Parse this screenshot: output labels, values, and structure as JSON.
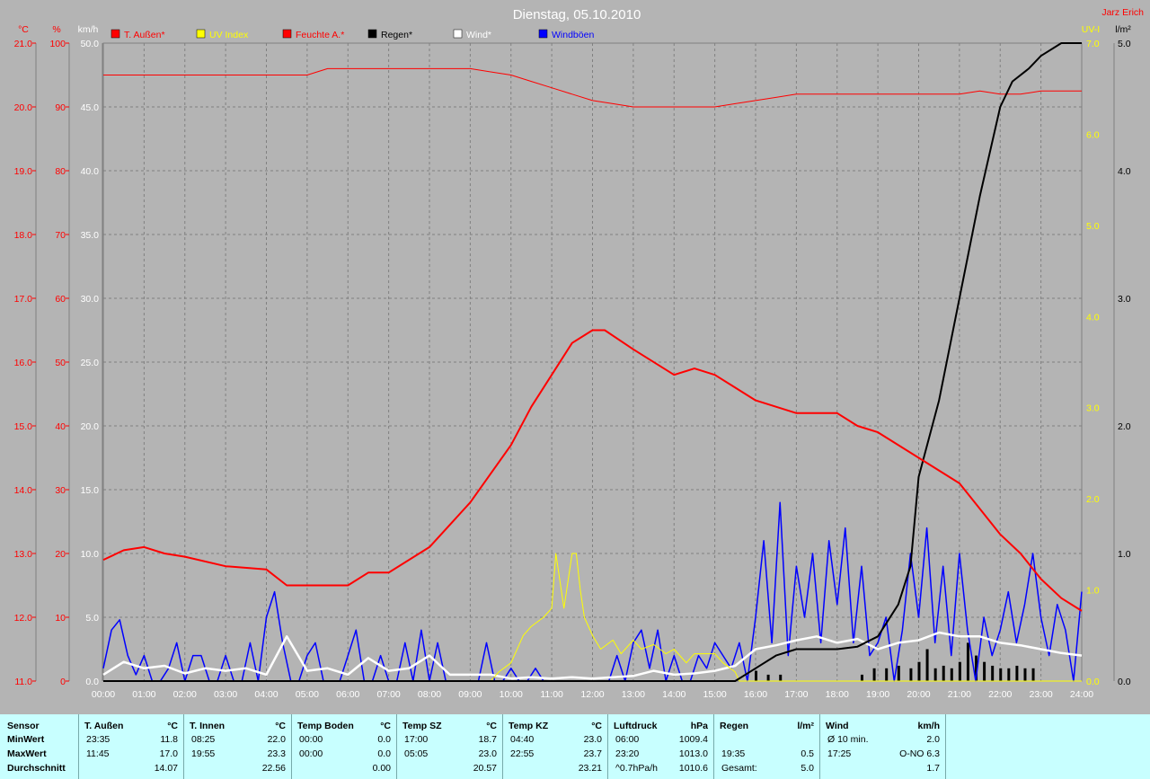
{
  "chart_data": {
    "type": "line",
    "title": "Dienstag, 05.10.2010",
    "author": "Jarz Erich",
    "axis_units": {
      "temp": "°C",
      "hum": "%",
      "wind": "km/h",
      "uv": "UV-I",
      "rain": "l/m²"
    },
    "axes": {
      "temp": {
        "min": 11.0,
        "max": 21.0,
        "step": 1.0,
        "color": "#ff0000"
      },
      "hum": {
        "min": 0,
        "max": 100,
        "step": 10,
        "color": "#ff0000"
      },
      "wind": {
        "min": 0,
        "max": 50,
        "step": 5,
        "color": "#ffffff"
      },
      "uv": {
        "min": 0,
        "max": 7,
        "step": 1,
        "color": "#ffff00"
      },
      "rain": {
        "min": 0,
        "max": 5,
        "step": 1,
        "color": "#000000"
      }
    },
    "x_ticks": [
      "00:00",
      "01:00",
      "02:00",
      "03:00",
      "04:00",
      "05:00",
      "06:00",
      "07:00",
      "08:00",
      "09:00",
      "10:00",
      "11:00",
      "12:00",
      "13:00",
      "14:00",
      "15:00",
      "16:00",
      "17:00",
      "18:00",
      "19:00",
      "20:00",
      "21:00",
      "22:00",
      "23:00",
      "24:00"
    ],
    "legend": [
      {
        "name": "T. Außen*",
        "color": "#ff0000"
      },
      {
        "name": "UV Index",
        "color": "#ffff00"
      },
      {
        "name": "Feuchte A.*",
        "color": "#ff0000"
      },
      {
        "name": "Regen*",
        "color": "#000000"
      },
      {
        "name": "Wind*",
        "color": "#ffffff"
      },
      {
        "name": "Windböen",
        "color": "#0000ff"
      }
    ],
    "series": [
      {
        "name": "T. Außen*",
        "axis": "temp",
        "color": "#ff0000",
        "width": 2,
        "x": [
          0,
          0.5,
          1,
          1.5,
          2,
          3,
          4,
          4.5,
          5,
          6,
          6.5,
          7,
          8,
          9,
          10,
          10.5,
          11,
          11.5,
          12,
          12.3,
          13,
          14,
          14.5,
          15,
          15.5,
          16,
          17,
          17.5,
          18,
          18.5,
          19,
          20,
          21,
          21.5,
          22,
          22.5,
          23,
          23.5,
          24
        ],
        "y": [
          12.9,
          13.05,
          13.1,
          13.0,
          12.95,
          12.8,
          12.75,
          12.5,
          12.5,
          12.5,
          12.7,
          12.7,
          13.1,
          13.8,
          14.7,
          15.3,
          15.8,
          16.3,
          16.5,
          16.5,
          16.2,
          15.8,
          15.9,
          15.8,
          15.6,
          15.4,
          15.2,
          15.2,
          15.2,
          15.0,
          14.9,
          14.5,
          14.1,
          13.7,
          13.3,
          13.0,
          12.6,
          12.3,
          12.1
        ]
      },
      {
        "name": "Feuchte A.*",
        "axis": "hum",
        "color": "#ff0000",
        "width": 1,
        "x": [
          0,
          1,
          2,
          3,
          4,
          5,
          5.5,
          6,
          7,
          8,
          9,
          9.5,
          10,
          10.5,
          11,
          11.5,
          12,
          12.5,
          13,
          14,
          15,
          15.5,
          16,
          16.5,
          17,
          18,
          19,
          20,
          21,
          21.5,
          22,
          22.5,
          23,
          23.5,
          24
        ],
        "y": [
          95,
          95,
          95,
          95,
          95,
          95,
          96,
          96,
          96,
          96,
          96,
          95.5,
          95,
          94,
          93,
          92,
          91,
          90.5,
          90,
          90,
          90,
          90.5,
          91,
          91.5,
          92,
          92,
          92,
          92,
          92,
          92.5,
          92,
          92,
          92.5,
          92.5,
          92.5
        ]
      },
      {
        "name": "UV Index",
        "axis": "uv",
        "color": "#ffff00",
        "width": 1,
        "x": [
          0,
          9.5,
          9.7,
          10.0,
          10.3,
          10.5,
          10.8,
          11.0,
          11.1,
          11.2,
          11.3,
          11.5,
          11.6,
          11.7,
          11.8,
          12.0,
          12.2,
          12.5,
          12.7,
          13.0,
          13.2,
          13.5,
          13.8,
          14.0,
          14.3,
          14.5,
          15.0,
          15.2,
          15.5,
          15.6,
          24
        ],
        "y": [
          0,
          0,
          0.1,
          0.2,
          0.5,
          0.6,
          0.7,
          0.8,
          1.4,
          1.1,
          0.8,
          1.4,
          1.4,
          1.0,
          0.7,
          0.5,
          0.35,
          0.45,
          0.3,
          0.45,
          0.35,
          0.4,
          0.3,
          0.35,
          0.2,
          0.3,
          0.3,
          0.2,
          0.1,
          0,
          0
        ]
      },
      {
        "name": "Regen*",
        "axis": "rain",
        "color": "#000000",
        "width": 2,
        "x": [
          0,
          15.5,
          16.0,
          16.5,
          17.0,
          18.0,
          18.5,
          19.0,
          19.5,
          19.8,
          20.0,
          20.5,
          21.0,
          21.5,
          22.0,
          22.3,
          22.7,
          23.0,
          23.5,
          24
        ],
        "y": [
          0,
          0,
          0.1,
          0.2,
          0.25,
          0.25,
          0.27,
          0.35,
          0.6,
          0.9,
          1.6,
          2.2,
          3.0,
          3.8,
          4.5,
          4.7,
          4.8,
          4.9,
          5.0,
          5.0
        ]
      },
      {
        "name": "Wind*",
        "axis": "wind",
        "color": "#ffffff",
        "width": 2.5,
        "x": [
          0,
          0.5,
          1,
          1.5,
          2,
          2.5,
          3,
          3.5,
          4,
          4.5,
          5,
          5.5,
          6,
          6.5,
          7,
          7.5,
          8,
          8.5,
          9,
          9.5,
          10,
          10.5,
          11,
          11.5,
          12,
          12.5,
          13,
          13.5,
          14,
          14.5,
          15,
          15.5,
          16,
          16.5,
          17,
          17.5,
          18,
          18.5,
          19,
          19.5,
          20,
          20.5,
          21,
          21.5,
          22,
          22.5,
          23,
          23.5,
          24
        ],
        "y": [
          0.5,
          1.5,
          1.0,
          1.2,
          0.6,
          1.0,
          0.8,
          1.0,
          0.5,
          3.5,
          0.8,
          1.0,
          0.5,
          1.8,
          0.8,
          1.0,
          2.0,
          0.5,
          0.5,
          0.5,
          0.2,
          0.3,
          0.2,
          0.3,
          0.2,
          0.3,
          0.4,
          0.8,
          0.5,
          0.6,
          0.8,
          1.2,
          2.5,
          2.8,
          3.2,
          3.5,
          3.0,
          3.3,
          2.5,
          3.0,
          3.2,
          3.8,
          3.5,
          3.5,
          3.0,
          2.8,
          2.5,
          2.2,
          2.0
        ]
      },
      {
        "name": "Windböen",
        "axis": "wind",
        "color": "#0000ff",
        "width": 1.5,
        "x": [
          0,
          0.2,
          0.4,
          0.6,
          0.8,
          1.0,
          1.2,
          1.4,
          1.6,
          1.8,
          2.0,
          2.2,
          2.4,
          2.6,
          2.8,
          3.0,
          3.2,
          3.4,
          3.6,
          3.8,
          4.0,
          4.2,
          4.4,
          4.6,
          4.8,
          5.0,
          5.2,
          5.4,
          5.6,
          5.8,
          6.0,
          6.2,
          6.4,
          6.6,
          6.8,
          7.0,
          7.2,
          7.4,
          7.6,
          7.8,
          8.0,
          8.2,
          8.4,
          8.6,
          8.8,
          9.0,
          9.2,
          9.4,
          9.6,
          9.8,
          10.0,
          10.2,
          10.4,
          10.6,
          10.8,
          11.0,
          11.2,
          11.4,
          11.6,
          11.8,
          12.0,
          12.2,
          12.4,
          12.6,
          12.8,
          13.0,
          13.2,
          13.4,
          13.6,
          13.8,
          14.0,
          14.2,
          14.4,
          14.6,
          14.8,
          15.0,
          15.2,
          15.4,
          15.6,
          15.8,
          16.0,
          16.2,
          16.4,
          16.6,
          16.8,
          17.0,
          17.2,
          17.4,
          17.6,
          17.8,
          18.0,
          18.2,
          18.4,
          18.6,
          18.8,
          19.0,
          19.2,
          19.4,
          19.6,
          19.8,
          20.0,
          20.2,
          20.4,
          20.6,
          20.8,
          21.0,
          21.2,
          21.4,
          21.6,
          21.8,
          22.0,
          22.2,
          22.4,
          22.6,
          22.8,
          23.0,
          23.2,
          23.4,
          23.6,
          23.8,
          24
        ],
        "y": [
          1,
          4,
          4.8,
          2,
          0.5,
          2,
          0,
          0,
          1,
          3,
          0,
          2,
          2,
          0,
          0,
          2,
          0,
          0,
          3,
          0,
          5,
          7,
          3,
          0,
          0,
          2,
          3,
          0,
          0,
          0,
          2,
          4,
          0,
          0,
          2,
          0,
          0,
          3,
          0,
          4,
          0,
          3,
          0,
          0,
          0,
          0,
          0,
          3,
          0,
          0,
          1,
          0,
          0,
          1,
          0,
          0,
          0,
          0,
          0,
          0,
          0,
          0,
          0,
          2,
          0,
          3,
          4,
          1,
          4,
          0,
          2,
          0,
          0,
          2,
          1,
          3,
          2,
          1,
          3,
          0,
          5,
          11,
          3,
          14,
          2,
          9,
          5,
          10,
          3,
          11,
          6,
          12,
          3,
          9,
          2,
          3,
          5,
          0,
          4,
          10,
          5,
          12,
          3,
          9,
          2,
          10,
          4,
          0,
          5,
          2,
          4,
          7,
          3,
          6,
          10,
          5,
          2,
          6,
          4,
          0,
          7
        ]
      }
    ],
    "rain_bars": {
      "axis": "rain",
      "color": "#000000",
      "x": [
        16.0,
        16.3,
        16.6,
        18.6,
        18.9,
        19.2,
        19.5,
        19.8,
        20.0,
        20.2,
        20.4,
        20.6,
        20.8,
        21.0,
        21.2,
        21.4,
        21.6,
        21.8,
        22.0,
        22.2,
        22.4,
        22.6,
        22.8
      ],
      "y": [
        0.08,
        0.05,
        0.05,
        0.05,
        0.1,
        0.1,
        0.12,
        0.1,
        0.15,
        0.25,
        0.1,
        0.12,
        0.1,
        0.15,
        0.3,
        0.2,
        0.15,
        0.12,
        0.1,
        0.1,
        0.12,
        0.1,
        0.1
      ]
    }
  },
  "stats": {
    "sensor": {
      "title": "Sensor",
      "rows": [
        "MinWert",
        "MaxWert",
        "Durchschnitt"
      ]
    },
    "cols": [
      {
        "title": "T. Außen",
        "unit": "°C",
        "min_time": "23:35",
        "min_val": "11.8",
        "max_time": "11:45",
        "max_val": "17.0",
        "avg": "14.07"
      },
      {
        "title": "T. Innen",
        "unit": "°C",
        "min_time": "08:25",
        "min_val": "22.0",
        "max_time": "19:55",
        "max_val": "23.3",
        "avg": "22.56"
      },
      {
        "title": "Temp Boden",
        "unit": "°C",
        "min_time": "00:00",
        "min_val": "0.0",
        "max_time": "00:00",
        "max_val": "0.0",
        "avg": "0.00"
      },
      {
        "title": "Temp SZ",
        "unit": "°C",
        "min_time": "17:00",
        "min_val": "18.7",
        "max_time": "05:05",
        "max_val": "23.0",
        "avg": "20.57"
      },
      {
        "title": "Temp KZ",
        "unit": "°C",
        "min_time": "04:40",
        "min_val": "23.0",
        "max_time": "22:55",
        "max_val": "23.7",
        "avg": "23.21"
      },
      {
        "title": "Luftdruck",
        "unit": "hPa",
        "min_time": "06:00",
        "min_val": "1009.4",
        "max_time": "23:20",
        "max_val": "1013.0",
        "avg_label": "^0.7hPa/h",
        "avg": "1010.6"
      },
      {
        "title": "Regen",
        "unit": "l/m²",
        "min_time": "",
        "min_val": "",
        "max_time": "19:35",
        "max_val": "0.5",
        "avg_label": "Gesamt:",
        "avg": "5.0"
      },
      {
        "title": "Wind",
        "unit": "km/h",
        "min_time": "Ø 10 min.",
        "min_val": "2.0",
        "max_time": "17:25",
        "max_val": "O-NO 6.3",
        "avg": "1.7"
      }
    ]
  }
}
